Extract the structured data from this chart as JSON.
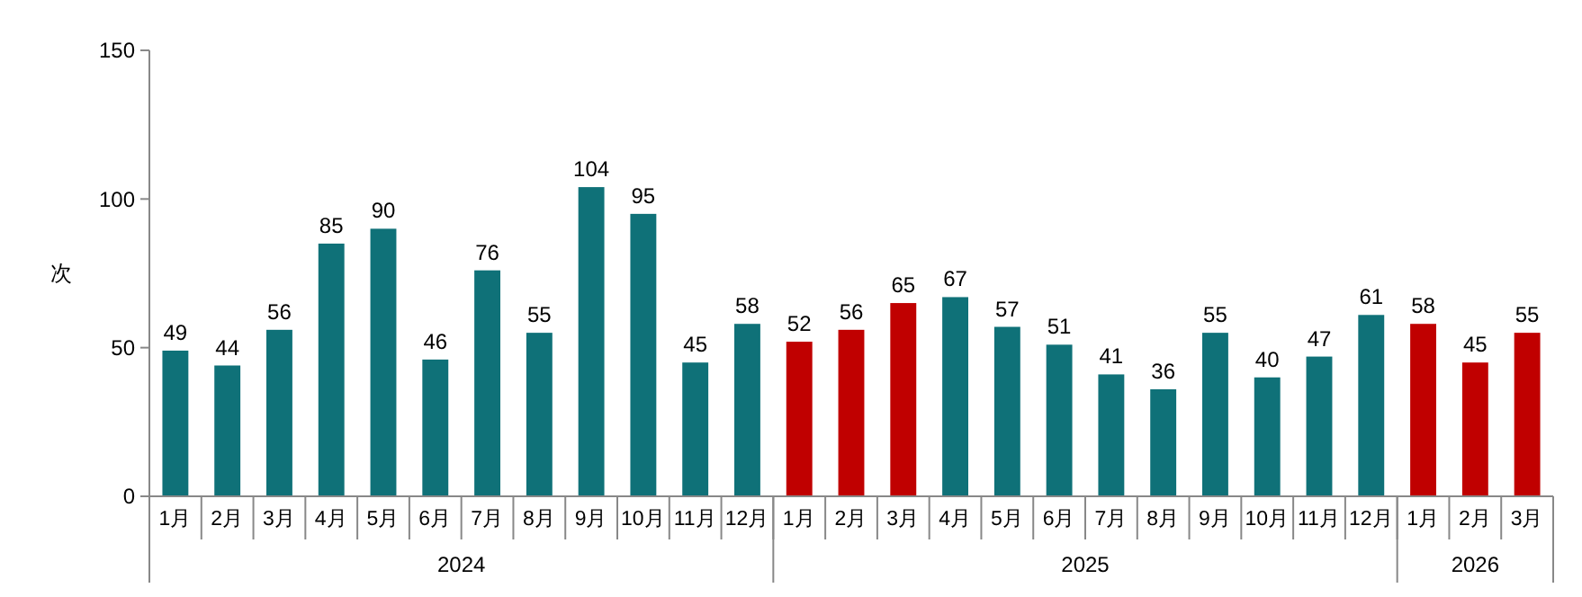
{
  "chart_data": {
    "type": "bar",
    "ylabel": "次",
    "categories": [
      "1月",
      "2月",
      "3月",
      "4月",
      "5月",
      "6月",
      "7月",
      "8月",
      "9月",
      "10月",
      "11月",
      "12月",
      "1月",
      "2月",
      "3月",
      "4月",
      "5月",
      "6月",
      "7月",
      "8月",
      "9月",
      "10月",
      "11月",
      "12月",
      "1月",
      "2月",
      "3月"
    ],
    "values": [
      49,
      44,
      56,
      85,
      90,
      46,
      76,
      55,
      104,
      95,
      45,
      58,
      52,
      56,
      65,
      67,
      57,
      51,
      41,
      36,
      55,
      40,
      47,
      61,
      58,
      45,
      55
    ],
    "colors": [
      "#0f7178",
      "#0f7178",
      "#0f7178",
      "#0f7178",
      "#0f7178",
      "#0f7178",
      "#0f7178",
      "#0f7178",
      "#0f7178",
      "#0f7178",
      "#0f7178",
      "#0f7178",
      "#c00000",
      "#c00000",
      "#c00000",
      "#0f7178",
      "#0f7178",
      "#0f7178",
      "#0f7178",
      "#0f7178",
      "#0f7178",
      "#0f7178",
      "#0f7178",
      "#0f7178",
      "#c00000",
      "#c00000",
      "#c00000"
    ],
    "ylim": [
      0,
      150
    ],
    "yticks": [
      0,
      50,
      100,
      150
    ],
    "grid": false,
    "data_labels": true,
    "annotations": [
      "2024",
      "2025",
      "2026"
    ]
  }
}
